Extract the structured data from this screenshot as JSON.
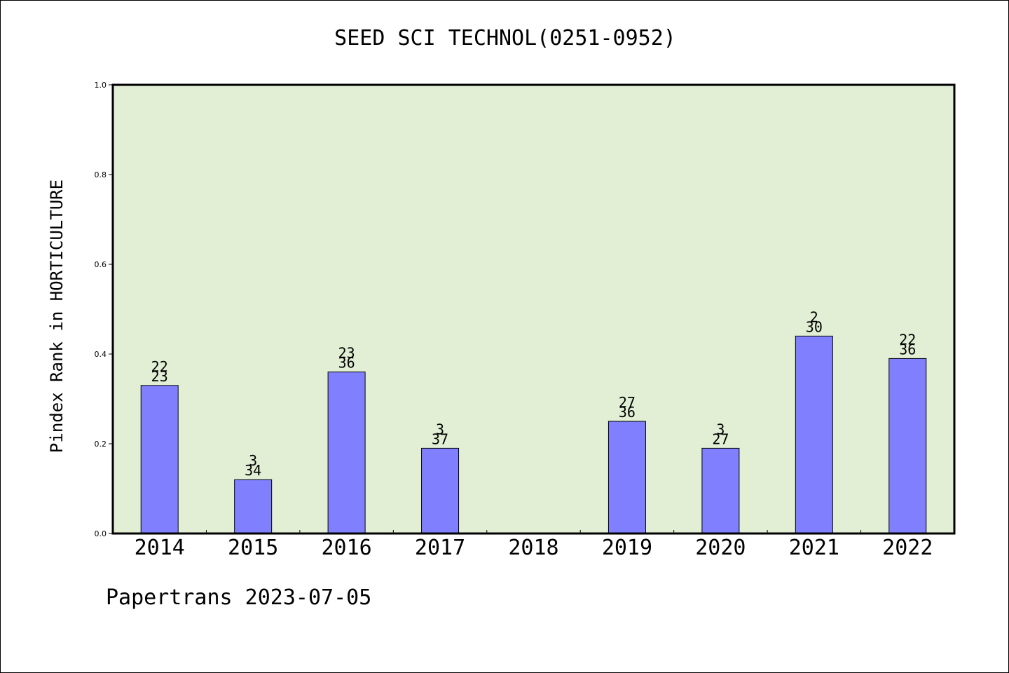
{
  "chart_data": {
    "type": "bar",
    "title": "SEED SCI TECHNOL(0251-0952)",
    "ylabel": "Pindex Rank in HORTICULTURE",
    "xlabel": "",
    "ylim": [
      0,
      1.0
    ],
    "yticks": [
      "0.0",
      "0.2",
      "0.4",
      "0.6",
      "0.8",
      "1.0"
    ],
    "grid": false,
    "categories": [
      "2014",
      "2015",
      "2016",
      "2017",
      "2018",
      "2019",
      "2020",
      "2021",
      "2022"
    ],
    "values": [
      0.33,
      0.12,
      0.36,
      0.19,
      null,
      0.25,
      0.19,
      0.44,
      0.39
    ],
    "rank_labels": [
      "22",
      "3",
      "23",
      "3",
      "",
      "27",
      "3",
      "2",
      "22"
    ],
    "total_labels": [
      "23",
      "34",
      "36",
      "37",
      "",
      "36",
      "27",
      "30",
      "36"
    ],
    "colors": {
      "bar": "#8080ff",
      "plot_background": "#e2efd5",
      "axis": "#000000"
    }
  },
  "footer": {
    "text": "Papertrans 2023-07-05"
  }
}
